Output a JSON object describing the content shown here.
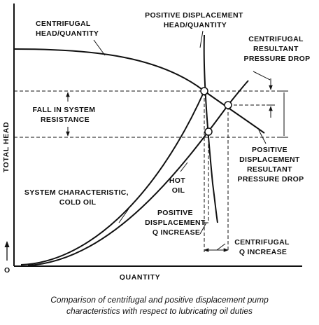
{
  "labels": {
    "centrifugal_head_quantity": [
      "CENTRIFUGAL",
      "HEAD/QUANTITY"
    ],
    "positive_displacement_head_quantity": [
      "POSITIVE DISPLACEMENT",
      "HEAD/QUANTITY"
    ],
    "centrifugal_resultant_pressure_drop": [
      "CENTRIFUGAL",
      "RESULTANT",
      "PRESSURE DROP"
    ],
    "fall_in_system_resistance": [
      "FALL IN SYSTEM",
      "RESISTANCE"
    ],
    "positive_displacement_resultant_pressure_drop": [
      "POSITIVE",
      "DISPLACEMENT",
      "RESULTANT",
      "PRESSURE DROP"
    ],
    "hot_oil": [
      "HOT",
      "OIL"
    ],
    "system_characteristic_cold_oil": [
      "SYSTEM CHARACTERISTIC,",
      "COLD OIL"
    ],
    "positive_displacement_q_increase": [
      "POSITIVE",
      "DISPLACEMENT",
      "Q INCREASE"
    ],
    "centrifugal_q_increase": [
      "CENTRIFUGAL",
      "Q INCREASE"
    ]
  },
  "axes": {
    "y_label": "TOTAL HEAD",
    "x_label": "QUANTITY",
    "origin": "O"
  },
  "caption": [
    "Comparison of centrifugal and positive displacement pump",
    "characteristics with respect to lubricating oil duties"
  ]
}
